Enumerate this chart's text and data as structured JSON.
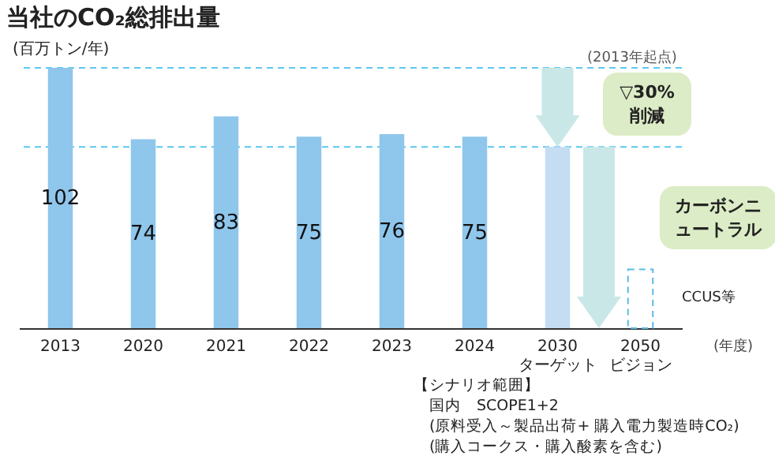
{
  "chart_data": {
    "type": "bar",
    "title": "当社のCO₂総排出量",
    "ylabel": "(百万トン/年)",
    "xlabel": "(年度)",
    "categories": [
      "2013",
      "2020",
      "2021",
      "2022",
      "2023",
      "2024",
      "2030\nターゲット",
      "2050\nビジョン"
    ],
    "series": [
      {
        "color": "#8fc6ec",
        "values": [
          102,
          74,
          83,
          75,
          76,
          75,
          null,
          null
        ],
        "value_labels": [
          "102",
          "74",
          "83",
          "75",
          "76",
          "75",
          null,
          null
        ]
      },
      {
        "color": "#c4ddf3",
        "values": [
          null,
          null,
          null,
          null,
          null,
          null,
          71,
          null
        ]
      },
      {
        "color": "#5bbbe8",
        "line_style": "dashed",
        "values": [
          null,
          null,
          null,
          null,
          null,
          null,
          null,
          23
        ]
      }
    ],
    "ref_lines": [
      {
        "axis": "y",
        "value": 102,
        "color": "#5bc8f0",
        "line_style": "dashed"
      },
      {
        "axis": "y",
        "value": 71,
        "color": "#5bc8f0",
        "line_style": "dashed"
      }
    ],
    "annotations": [
      "(2013年起点)",
      "▽30%削減",
      "カーボンニュートラル",
      "CCUS等",
      "【シナリオ範囲】",
      "国内　SCOPE1+2",
      "(原料受入～製品出荷+ 購入電力製造時CO₂)",
      "(購入コークス・購入酸素を含む)"
    ],
    "grid": false
  }
}
